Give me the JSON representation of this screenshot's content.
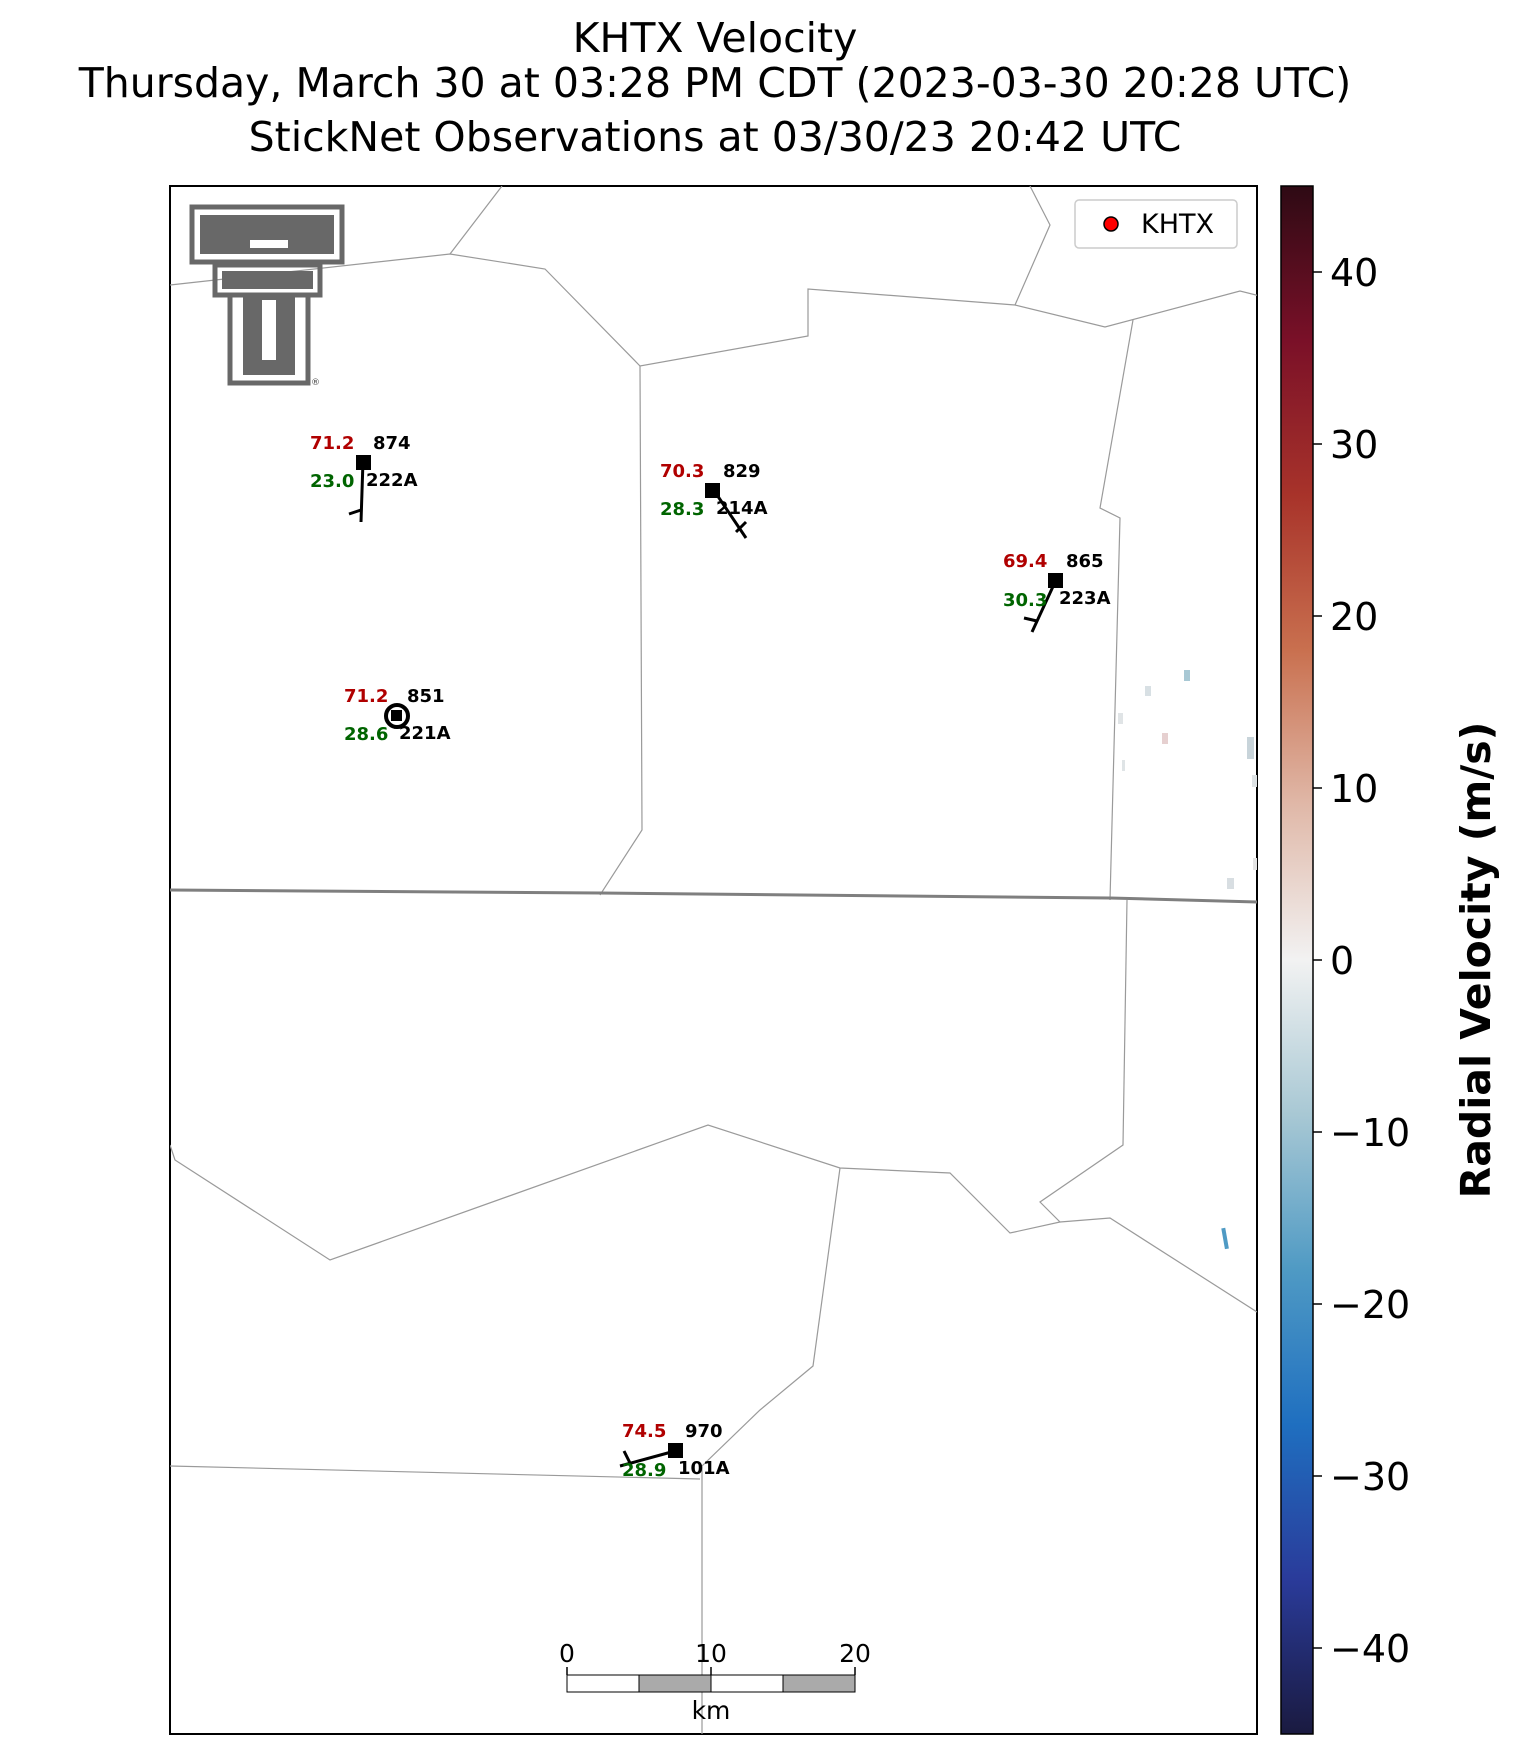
{
  "header": {
    "line1": "KHTX Velocity",
    "line2": "Thursday, March 30 at 03:28 PM CDT (2023-03-30 20:28 UTC)",
    "line3": "StickNet Observations at 03/30/23 20:42 UTC"
  },
  "legend": {
    "label": "KHTX",
    "marker_color": "#ff0000"
  },
  "colorbar": {
    "label": "Radial Velocity (m/s)",
    "min": -45,
    "max": 45,
    "ticks": [
      "40",
      "30",
      "20",
      "10",
      "0",
      "−10",
      "−20",
      "−30",
      "−40"
    ],
    "tick_values": [
      40,
      30,
      20,
      10,
      0,
      -10,
      -20,
      -30,
      -40
    ],
    "colors": [
      "#1a1a40",
      "#2a3b9a",
      "#1f6fc0",
      "#4f9ac4",
      "#a8c8d4",
      "#f2f2f2",
      "#e0b8a8",
      "#c9704f",
      "#a8332a",
      "#7a1028",
      "#2e0a14"
    ]
  },
  "scalebar": {
    "ticks": [
      "0",
      "10",
      "20"
    ],
    "unit": "km"
  },
  "stations": [
    {
      "id": "222A",
      "temp": "71.2",
      "dew": "23.0",
      "pressure": "874"
    },
    {
      "id": "214A",
      "temp": "70.3",
      "dew": "28.3",
      "pressure": "829"
    },
    {
      "id": "223A",
      "temp": "69.4",
      "dew": "30.3",
      "pressure": "865"
    },
    {
      "id": "221A",
      "temp": "71.2",
      "dew": "28.6",
      "pressure": "851"
    },
    {
      "id": "101A",
      "temp": "74.5",
      "dew": "28.9",
      "pressure": "970"
    }
  ],
  "colors": {
    "temp": "#b00000",
    "dew": "#006400",
    "station": "#000000"
  },
  "logo": {
    "name": "texas-tech-double-t-logo"
  }
}
